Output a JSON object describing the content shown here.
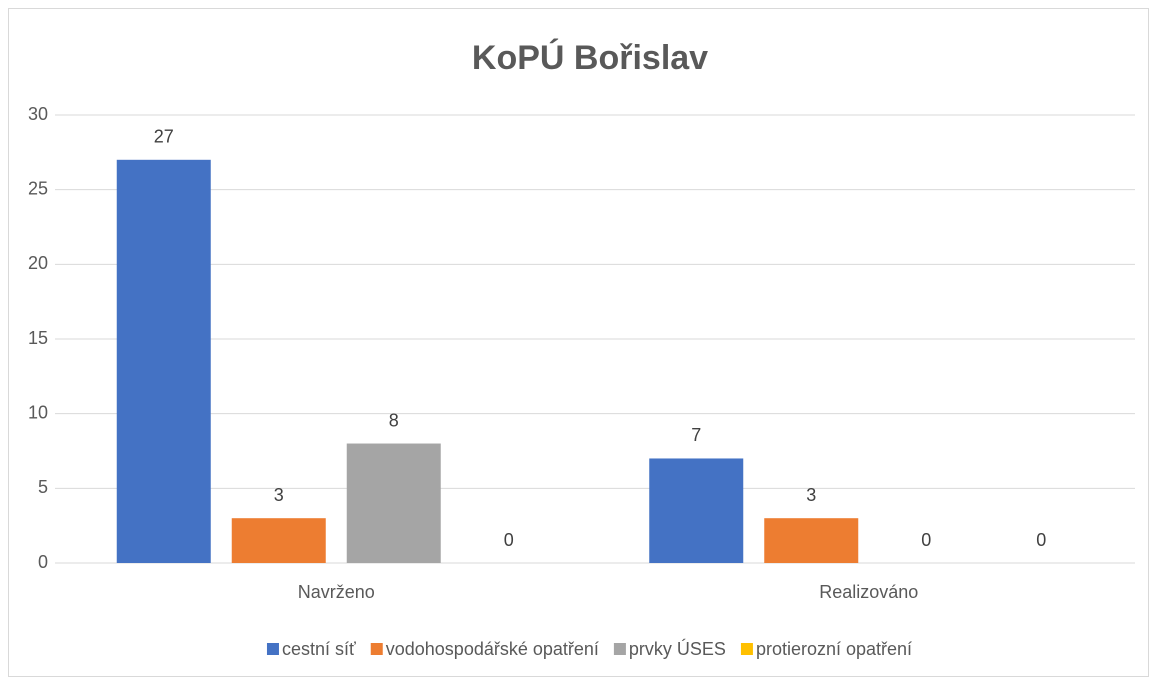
{
  "chart_data": {
    "type": "bar",
    "title": "KoPÚ Bořislav",
    "categories": [
      "Navrženo",
      "Realizováno"
    ],
    "series": [
      {
        "name": "cestní síť",
        "color": "#4472c4",
        "values": [
          27,
          7
        ]
      },
      {
        "name": "vodohospodářské opatření",
        "color": "#ed7d31",
        "values": [
          3,
          3
        ]
      },
      {
        "name": "prvky ÚSES",
        "color": "#a5a5a5",
        "values": [
          8,
          0
        ]
      },
      {
        "name": "protierozní opatření",
        "color": "#ffc000",
        "values": [
          0,
          0
        ]
      }
    ],
    "ylim": [
      0,
      30
    ],
    "yticks": [
      0,
      5,
      10,
      15,
      20,
      25,
      30
    ],
    "grid": true,
    "legend": "bottom"
  }
}
